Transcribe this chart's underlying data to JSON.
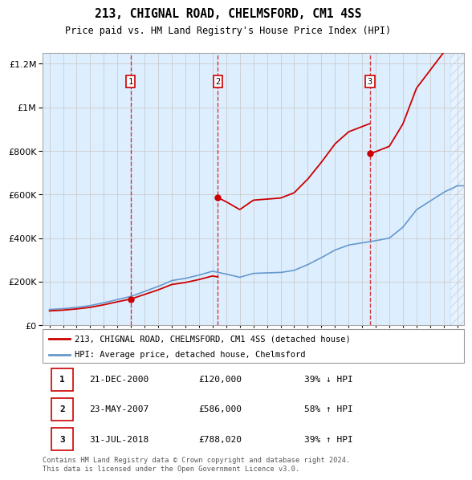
{
  "title1": "213, CHIGNAL ROAD, CHELMSFORD, CM1 4SS",
  "title2": "Price paid vs. HM Land Registry's House Price Index (HPI)",
  "legend_line1": "213, CHIGNAL ROAD, CHELMSFORD, CM1 4SS (detached house)",
  "legend_line2": "HPI: Average price, detached house, Chelmsford",
  "transactions": [
    {
      "num": 1,
      "date": "21-DEC-2000",
      "date_x": 2000.97,
      "price": 120000
    },
    {
      "num": 2,
      "date": "23-MAY-2007",
      "date_x": 2007.39,
      "price": 586000
    },
    {
      "num": 3,
      "date": "31-JUL-2018",
      "date_x": 2018.58,
      "price": 788020
    }
  ],
  "table_rows": [
    {
      "num": 1,
      "date": "21-DEC-2000",
      "price": "£120,000",
      "pct": "39% ↓ HPI"
    },
    {
      "num": 2,
      "date": "23-MAY-2007",
      "price": "£586,000",
      "pct": "58% ↑ HPI"
    },
    {
      "num": 3,
      "date": "31-JUL-2018",
      "price": "£788,020",
      "pct": "39% ↑ HPI"
    }
  ],
  "footer": "Contains HM Land Registry data © Crown copyright and database right 2024.\nThis data is licensed under the Open Government Licence v3.0.",
  "price_color": "#cc0000",
  "hpi_color": "#6699cc",
  "bg_color": "#ddeeff",
  "grid_color": "#cccccc",
  "ylim": [
    0,
    1250000
  ],
  "xlim_start": 1994.5,
  "xlim_end": 2025.5,
  "hpi_year_vals": [
    [
      1995,
      72000
    ],
    [
      1996,
      76000
    ],
    [
      1997,
      82000
    ],
    [
      1998,
      90000
    ],
    [
      1999,
      103000
    ],
    [
      2000,
      118000
    ],
    [
      2001,
      132000
    ],
    [
      2002,
      155000
    ],
    [
      2003,
      178000
    ],
    [
      2004,
      205000
    ],
    [
      2005,
      215000
    ],
    [
      2006,
      230000
    ],
    [
      2007,
      248000
    ],
    [
      2008,
      235000
    ],
    [
      2009,
      220000
    ],
    [
      2010,
      238000
    ],
    [
      2011,
      240000
    ],
    [
      2012,
      242000
    ],
    [
      2013,
      252000
    ],
    [
      2014,
      278000
    ],
    [
      2015,
      310000
    ],
    [
      2016,
      345000
    ],
    [
      2017,
      368000
    ],
    [
      2018,
      378000
    ],
    [
      2019,
      388000
    ],
    [
      2020,
      400000
    ],
    [
      2021,
      450000
    ],
    [
      2022,
      530000
    ],
    [
      2023,
      570000
    ],
    [
      2024,
      610000
    ],
    [
      2025,
      640000
    ]
  ]
}
